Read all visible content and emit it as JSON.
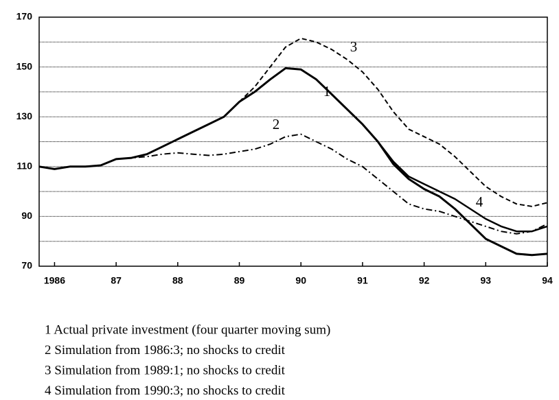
{
  "chart_data": {
    "type": "line",
    "x": [
      1985.75,
      1986,
      1986.25,
      1986.5,
      1986.75,
      1987,
      1987.25,
      1987.5,
      1987.75,
      1988,
      1988.25,
      1988.5,
      1988.75,
      1989,
      1989.25,
      1989.5,
      1989.75,
      1990,
      1990.25,
      1990.5,
      1990.75,
      1991,
      1991.25,
      1991.5,
      1991.75,
      1992,
      1992.25,
      1992.5,
      1992.75,
      1993,
      1993.25,
      1993.5,
      1993.75,
      1994
    ],
    "series": [
      {
        "name": "1 Actual private investment (four quarter moving sum)",
        "color": "#000000",
        "dash": "solid",
        "width": 3,
        "values": [
          110,
          109,
          110,
          110,
          110.5,
          113,
          113.5,
          115,
          118,
          121,
          124,
          127,
          130,
          136,
          140,
          145,
          149.5,
          149,
          145,
          139,
          133,
          127,
          120,
          111,
          105,
          101,
          98,
          93,
          87,
          81,
          78,
          75,
          74.5,
          75
        ]
      },
      {
        "name": "2 Simulation from 1986:3; no shocks to credit",
        "color": "#000000",
        "dash": "dashdot",
        "width": 2,
        "values": [
          null,
          null,
          null,
          null,
          110.5,
          113,
          113.5,
          114,
          115,
          115.5,
          115,
          114.5,
          115,
          116,
          117,
          119,
          122,
          123,
          120,
          117,
          113,
          110,
          105,
          100,
          95,
          93,
          92,
          90,
          88,
          86,
          84,
          83,
          84,
          87
        ]
      },
      {
        "name": "3 Simulation from 1989:1; no shocks to credit",
        "color": "#000000",
        "dash": "dash",
        "width": 2,
        "values": [
          null,
          null,
          null,
          null,
          null,
          null,
          null,
          null,
          null,
          null,
          null,
          null,
          null,
          136,
          142,
          150,
          158,
          161.5,
          160,
          157,
          153,
          148,
          141,
          132,
          125,
          122,
          119,
          114,
          108,
          102,
          98,
          95,
          94,
          95.5
        ]
      },
      {
        "name": "4 Simulation from 1990:3; no shocks to credit",
        "color": "#000000",
        "dash": "solid",
        "width": 2.5,
        "values": [
          null,
          null,
          null,
          null,
          null,
          null,
          null,
          null,
          null,
          null,
          null,
          null,
          null,
          null,
          null,
          null,
          null,
          null,
          null,
          139,
          133,
          127,
          120,
          112,
          106,
          103,
          100,
          97,
          93,
          89,
          86,
          84,
          84,
          86
        ]
      }
    ],
    "annotations": [
      "1",
      "2",
      "3",
      "4"
    ],
    "xlim": [
      1985.75,
      1994
    ],
    "xticks": [
      {
        "value": 1986,
        "label": "1986"
      },
      {
        "value": 1987,
        "label": "87"
      },
      {
        "value": 1988,
        "label": "88"
      },
      {
        "value": 1989,
        "label": "89"
      },
      {
        "value": 1990,
        "label": "90"
      },
      {
        "value": 1991,
        "label": "91"
      },
      {
        "value": 1992,
        "label": "92"
      },
      {
        "value": 1993,
        "label": "93"
      },
      {
        "value": 1994,
        "label": "94"
      }
    ],
    "ylim": [
      70,
      170
    ],
    "yticks": [
      70,
      90,
      110,
      130,
      150,
      170
    ],
    "yminor": [
      80,
      100,
      120,
      140,
      160
    ],
    "grid": true
  }
}
